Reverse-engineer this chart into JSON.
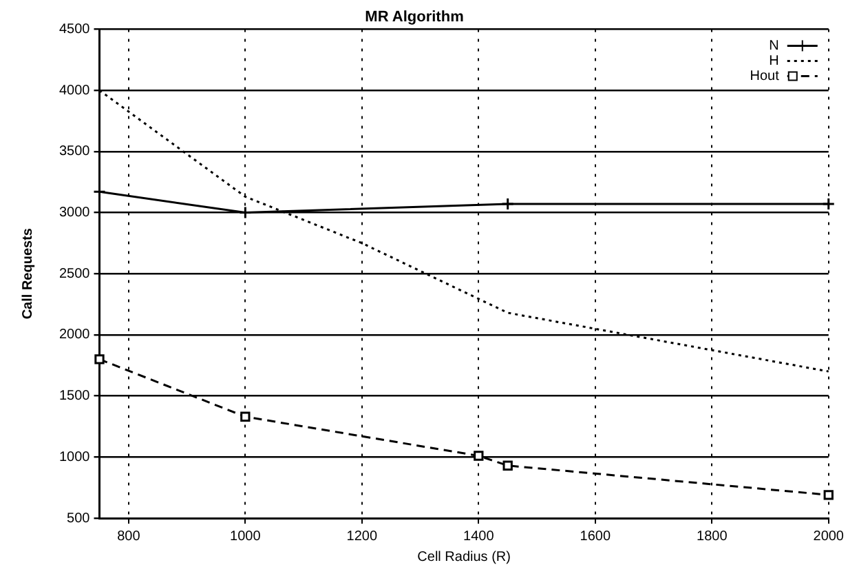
{
  "chart_data": {
    "type": "line",
    "title": "MR Algorithm",
    "xlabel": "Cell Radius (R)",
    "ylabel": "Call Requests",
    "xlim": [
      750,
      2000
    ],
    "xticks": [
      800,
      1000,
      1200,
      1400,
      1600,
      1800,
      2000
    ],
    "ylim": [
      500,
      4500
    ],
    "yticks": [
      500,
      1000,
      1500,
      2000,
      2500,
      3000,
      3500,
      4000,
      4500
    ],
    "grid": true,
    "legend": "top right",
    "series": [
      {
        "name": "N",
        "color": "#000000",
        "marker": "cross",
        "line_style": "solid",
        "x": [
          750,
          1000,
          1450,
          2000
        ],
        "values": [
          3170,
          3000,
          3070,
          3070
        ]
      },
      {
        "name": "H",
        "color": "#000000",
        "marker": "none",
        "line_style": "dotted",
        "x": [
          750,
          1000,
          1200,
          1450,
          2000
        ],
        "values": [
          4000,
          3130,
          2750,
          2180,
          1700
        ]
      },
      {
        "name": "Hout",
        "color": "#000000",
        "marker": "square",
        "line_style": "dashed",
        "x": [
          750,
          1000,
          1400,
          1450,
          2000
        ],
        "values": [
          1800,
          1330,
          1010,
          930,
          690
        ]
      }
    ]
  }
}
